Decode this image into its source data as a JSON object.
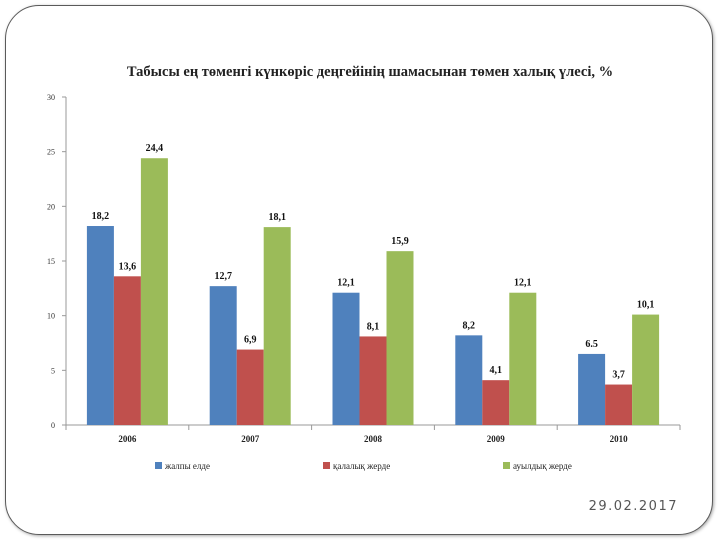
{
  "footer": {
    "date": "29.02.2017"
  },
  "colors": {
    "series": [
      "#4F81BD",
      "#C0504D",
      "#9BBB59"
    ]
  },
  "chart_data": {
    "type": "bar",
    "title": "Табысы ең төменгі күнкөріс деңгейінің шамасынан төмен халық үлесі, %",
    "xlabel": "",
    "ylabel": "",
    "categories": [
      "2006",
      "2007",
      "2008",
      "2009",
      "2010"
    ],
    "ylim": [
      0,
      30
    ],
    "yticks": [
      "0",
      "5",
      "10",
      "15",
      "20",
      "25",
      "30"
    ],
    "legend_position": "bottom",
    "grid": false,
    "series": [
      {
        "name": "жалпы елде",
        "values": [
          18.2,
          12.7,
          12.1,
          8.2,
          6.5
        ],
        "labels": [
          "18,2",
          "12,7",
          "12,1",
          "8,2",
          "6.5"
        ]
      },
      {
        "name": "қалалық жерде",
        "values": [
          13.6,
          6.9,
          8.1,
          4.1,
          3.7
        ],
        "labels": [
          "13,6",
          "6,9",
          "8,1",
          "4,1",
          "3,7"
        ]
      },
      {
        "name": "ауылдық жерде",
        "values": [
          24.4,
          18.1,
          15.9,
          12.1,
          10.1
        ],
        "labels": [
          "24,4",
          "18,1",
          "15,9",
          "12,1",
          "10,1"
        ]
      }
    ]
  }
}
